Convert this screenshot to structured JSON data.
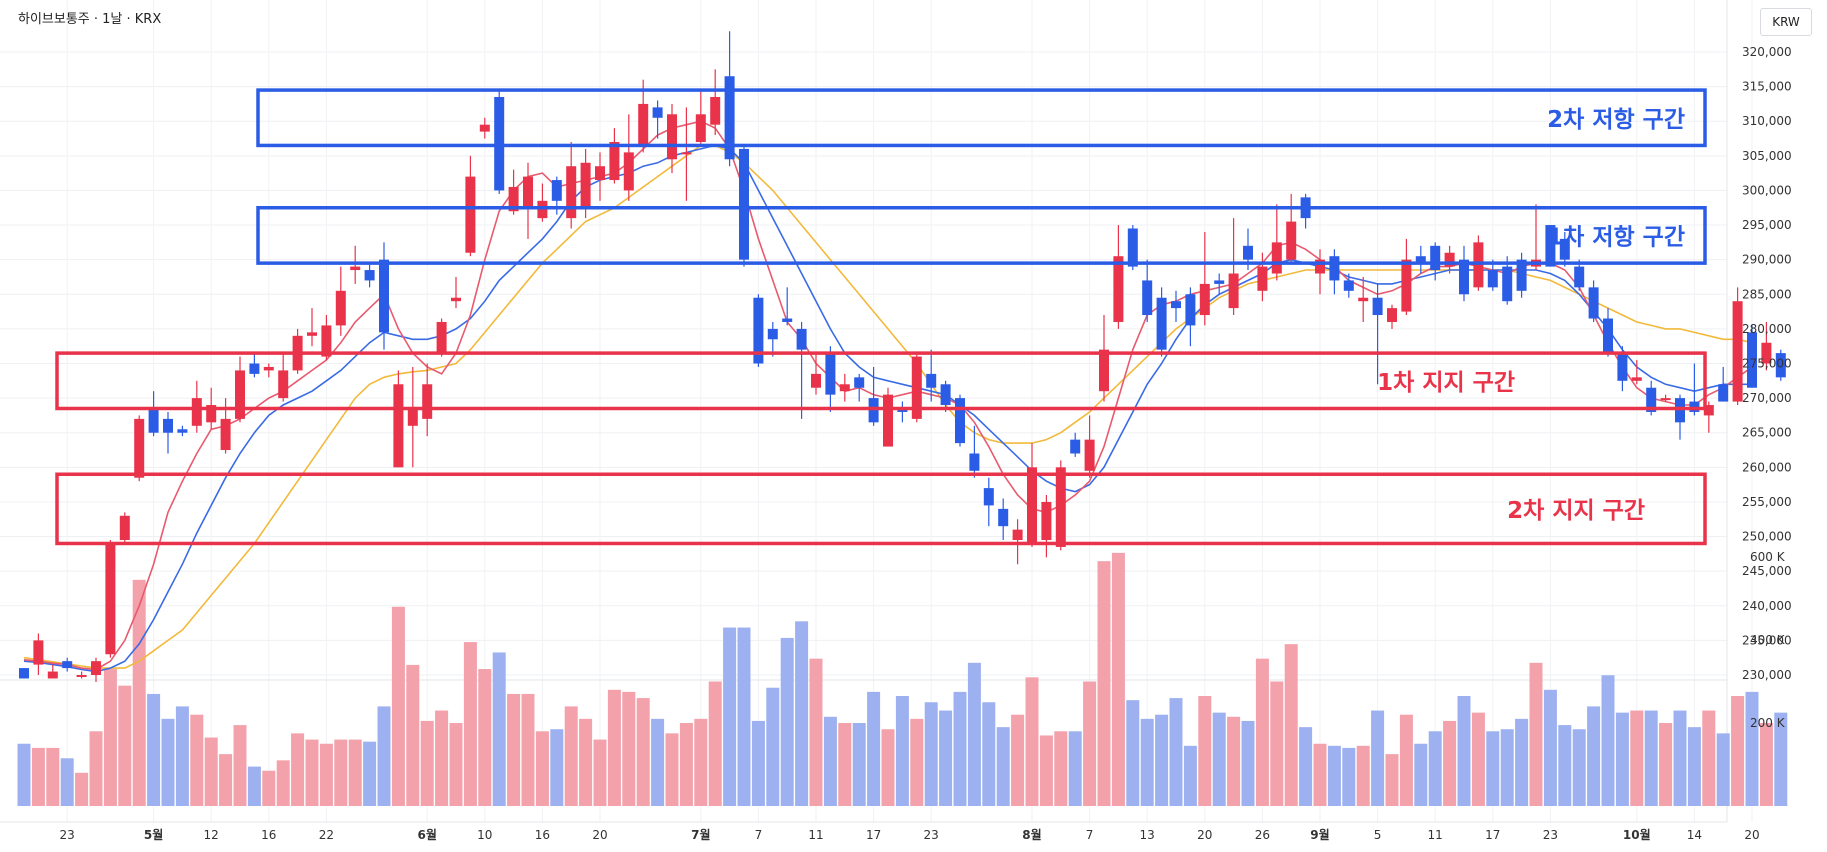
{
  "header": {
    "symbol": "하이브보통주 · 1날 · KRX",
    "currency": "KRW"
  },
  "colors": {
    "up": "#e8334a",
    "down": "#2b5ce6",
    "ma5": "#e85a6e",
    "ma10": "#3a6be6",
    "ma20": "#f2b93a",
    "vol_up": "#f3a1ab",
    "vol_down": "#9db0f0",
    "resist": "#2b5ce6",
    "support": "#e8334a"
  },
  "zones": [
    {
      "label": "2차 저항 구간",
      "type": "resistance",
      "low": 306500,
      "high": 314500
    },
    {
      "label": "1차 저항 구간",
      "type": "resistance",
      "low": 289500,
      "high": 297500
    },
    {
      "label": "1차 지지 구간",
      "type": "support",
      "low": 268500,
      "high": 276500
    },
    {
      "label": "2차 지지 구간",
      "type": "support",
      "low": 249000,
      "high": 259000
    }
  ],
  "chart_data": {
    "type": "candlestick",
    "price_axis": {
      "min": 230000,
      "max": 320000,
      "ticks": [
        "230,000",
        "235,000",
        "240,000",
        "245,000",
        "250,000",
        "255,000",
        "260,000",
        "265,000",
        "270,000",
        "275,000",
        "280,000",
        "285,000",
        "290,000",
        "295,000",
        "300,000",
        "305,000",
        "310,000",
        "315,000",
        "320,000"
      ]
    },
    "volume_axis": {
      "ticks": [
        "200 K",
        "400 K",
        "600 K"
      ],
      "tick_values": [
        200000,
        400000,
        600000
      ]
    },
    "x_labels": [
      {
        "i": 3,
        "t": "23"
      },
      {
        "i": 9,
        "t": "5월"
      },
      {
        "i": 13,
        "t": "12"
      },
      {
        "i": 17,
        "t": "16"
      },
      {
        "i": 21,
        "t": "22"
      },
      {
        "i": 28,
        "t": "6월"
      },
      {
        "i": 32,
        "t": "10"
      },
      {
        "i": 36,
        "t": "16"
      },
      {
        "i": 40,
        "t": "20"
      },
      {
        "i": 47,
        "t": "7월"
      },
      {
        "i": 51,
        "t": "7"
      },
      {
        "i": 55,
        "t": "11"
      },
      {
        "i": 59,
        "t": "17"
      },
      {
        "i": 63,
        "t": "23"
      },
      {
        "i": 70,
        "t": "8월"
      },
      {
        "i": 74,
        "t": "7"
      },
      {
        "i": 78,
        "t": "13"
      },
      {
        "i": 82,
        "t": "20"
      },
      {
        "i": 86,
        "t": "26"
      },
      {
        "i": 90,
        "t": "9월"
      },
      {
        "i": 94,
        "t": "5"
      },
      {
        "i": 98,
        "t": "11"
      },
      {
        "i": 102,
        "t": "17"
      },
      {
        "i": 106,
        "t": "23"
      },
      {
        "i": 112,
        "t": "10월"
      },
      {
        "i": 116,
        "t": "14"
      },
      {
        "i": 120,
        "t": "20"
      }
    ],
    "candles": [
      [
        231000,
        229500,
        231000,
        229500,
        150000
      ],
      [
        231500,
        235000,
        236000,
        230000,
        140000
      ],
      [
        229500,
        230500,
        231500,
        229500,
        140000
      ],
      [
        232000,
        231000,
        232500,
        230500,
        115000
      ],
      [
        230000,
        230000,
        230500,
        229500,
        80000
      ],
      [
        230000,
        232000,
        232500,
        229000,
        180000
      ],
      [
        233000,
        249000,
        249500,
        232500,
        330000
      ],
      [
        249500,
        253000,
        253500,
        249000,
        290000
      ],
      [
        258500,
        267000,
        267500,
        258000,
        545000
      ],
      [
        268500,
        265000,
        271000,
        264500,
        270000
      ],
      [
        267000,
        265000,
        268000,
        262000,
        210000
      ],
      [
        265500,
        265000,
        266000,
        264500,
        240000
      ],
      [
        266000,
        270000,
        272500,
        265000,
        220000
      ],
      [
        266500,
        269000,
        271500,
        265500,
        165000
      ],
      [
        262500,
        267000,
        270000,
        262000,
        125000
      ],
      [
        267000,
        274000,
        276000,
        266500,
        195000
      ],
      [
        275000,
        273500,
        276500,
        273000,
        95000
      ],
      [
        274000,
        274500,
        275000,
        273000,
        85000
      ],
      [
        270000,
        274000,
        276500,
        269500,
        110000
      ],
      [
        274000,
        279000,
        280000,
        273500,
        175000
      ],
      [
        279000,
        279500,
        283000,
        277500,
        160000
      ],
      [
        276000,
        280500,
        282000,
        275500,
        150000
      ],
      [
        280500,
        285500,
        289000,
        279000,
        160000
      ],
      [
        288500,
        289000,
        292000,
        286500,
        160000
      ],
      [
        288500,
        287000,
        289500,
        286000,
        155000
      ],
      [
        290000,
        279500,
        292500,
        277000,
        240000
      ],
      [
        260000,
        272000,
        274000,
        260000,
        480000
      ],
      [
        266000,
        268500,
        274500,
        260000,
        340000
      ],
      [
        267000,
        272000,
        275000,
        264500,
        205000
      ],
      [
        276500,
        281000,
        281500,
        276000,
        230000
      ],
      [
        284000,
        284500,
        287500,
        283000,
        200000
      ],
      [
        291000,
        302000,
        305000,
        290500,
        395000
      ],
      [
        308500,
        309500,
        310500,
        307500,
        330000
      ],
      [
        313500,
        300000,
        314500,
        299500,
        370000
      ],
      [
        297000,
        300500,
        303000,
        296500,
        270000
      ],
      [
        297500,
        302000,
        304000,
        293000,
        270000
      ],
      [
        296000,
        298500,
        301000,
        295500,
        180000
      ],
      [
        301500,
        298500,
        302000,
        296500,
        185000
      ],
      [
        296000,
        303500,
        307000,
        294500,
        240000
      ],
      [
        297500,
        304000,
        306000,
        296000,
        210000
      ],
      [
        301500,
        303500,
        305500,
        298500,
        160000
      ],
      [
        301500,
        307000,
        309000,
        301000,
        280000
      ],
      [
        300000,
        305500,
        311000,
        298500,
        275000
      ],
      [
        306500,
        312500,
        316000,
        305500,
        260000
      ],
      [
        312000,
        310500,
        313000,
        307500,
        210000
      ],
      [
        304500,
        311000,
        312500,
        302500,
        175000
      ],
      [
        305500,
        305500,
        312000,
        298500,
        200000
      ],
      [
        307000,
        311000,
        314500,
        306500,
        210000
      ],
      [
        309500,
        313500,
        317500,
        308000,
        300000
      ],
      [
        316500,
        304500,
        323000,
        303500,
        430000
      ],
      [
        306000,
        290000,
        306500,
        289000,
        430000
      ],
      [
        284500,
        275000,
        285000,
        274500,
        205000
      ],
      [
        280000,
        278500,
        281000,
        276000,
        285000
      ],
      [
        281500,
        281000,
        286000,
        280500,
        405000
      ],
      [
        280000,
        277000,
        281000,
        267000,
        445000
      ],
      [
        271500,
        273500,
        276500,
        270500,
        355000
      ],
      [
        276500,
        270500,
        277500,
        268000,
        215000
      ],
      [
        271000,
        272000,
        273500,
        269500,
        200000
      ],
      [
        273000,
        271500,
        273500,
        269500,
        200000
      ],
      [
        270000,
        266500,
        274500,
        266000,
        275000
      ],
      [
        263000,
        270500,
        271500,
        263000,
        185000
      ],
      [
        268500,
        268000,
        269500,
        266500,
        265000
      ],
      [
        267000,
        276000,
        276500,
        266500,
        210000
      ],
      [
        273500,
        271500,
        277000,
        269500,
        250000
      ],
      [
        272000,
        269000,
        272500,
        268000,
        230000
      ],
      [
        270000,
        263500,
        270500,
        263000,
        275000
      ],
      [
        262000,
        259500,
        266000,
        258500,
        345000
      ],
      [
        257000,
        254500,
        258500,
        251500,
        250000
      ],
      [
        254000,
        251500,
        255500,
        249500,
        190000
      ],
      [
        249500,
        251000,
        252500,
        246000,
        220000
      ],
      [
        249000,
        260000,
        263500,
        248500,
        310000
      ],
      [
        249500,
        255000,
        256000,
        247000,
        170000
      ],
      [
        248500,
        260000,
        261000,
        248000,
        180000
      ],
      [
        264000,
        262000,
        265000,
        261500,
        180000
      ],
      [
        259500,
        264000,
        267500,
        258500,
        300000
      ],
      [
        271000,
        277000,
        282000,
        269500,
        590000
      ],
      [
        281000,
        290500,
        295000,
        280000,
        610000
      ],
      [
        294500,
        289000,
        295000,
        288500,
        255000
      ],
      [
        287000,
        282000,
        290000,
        281000,
        210000
      ],
      [
        284500,
        277000,
        286000,
        276000,
        220000
      ],
      [
        284000,
        283000,
        285500,
        281000,
        260000
      ],
      [
        285000,
        280500,
        286000,
        277500,
        145000
      ],
      [
        282000,
        286500,
        294000,
        280500,
        265000
      ],
      [
        287000,
        286500,
        288000,
        285000,
        225000
      ],
      [
        283000,
        288000,
        296000,
        282000,
        215000
      ],
      [
        292000,
        290000,
        294500,
        288500,
        205000
      ],
      [
        285500,
        289000,
        291000,
        284000,
        355000
      ],
      [
        288000,
        292500,
        298000,
        287000,
        300000
      ],
      [
        290000,
        295500,
        299500,
        289500,
        390000
      ],
      [
        299000,
        296000,
        299500,
        294500,
        190000
      ],
      [
        288000,
        290000,
        291500,
        285000,
        150000
      ],
      [
        290500,
        287000,
        291500,
        285000,
        145000
      ],
      [
        287000,
        285500,
        288000,
        284500,
        140000
      ],
      [
        284000,
        284500,
        287500,
        281000,
        145000
      ],
      [
        284500,
        282000,
        286500,
        272000,
        230000
      ],
      [
        281000,
        283000,
        283500,
        280000,
        125000
      ],
      [
        282500,
        290000,
        293000,
        282000,
        220000
      ],
      [
        290500,
        289500,
        292000,
        288000,
        150000
      ],
      [
        292000,
        288500,
        292500,
        287000,
        180000
      ],
      [
        289000,
        291000,
        292000,
        288000,
        205000
      ],
      [
        290000,
        285000,
        292000,
        284000,
        265000
      ],
      [
        286000,
        292500,
        293500,
        285500,
        225000
      ],
      [
        288500,
        286000,
        290000,
        285500,
        180000
      ],
      [
        289000,
        284000,
        290500,
        283500,
        185000
      ],
      [
        290000,
        285500,
        291000,
        284500,
        210000
      ],
      [
        289000,
        290000,
        298000,
        288500,
        345000
      ],
      [
        295000,
        289000,
        295000,
        289000,
        280000
      ],
      [
        293000,
        290000,
        294000,
        289000,
        195000
      ],
      [
        289000,
        286000,
        290000,
        285500,
        185000
      ],
      [
        286000,
        281500,
        287000,
        281000,
        240000
      ],
      [
        281500,
        276500,
        283000,
        276000,
        315000
      ],
      [
        276500,
        272500,
        277500,
        271000,
        225000
      ],
      [
        272500,
        273000,
        275500,
        272000,
        230000
      ],
      [
        271500,
        268000,
        272500,
        267500,
        230000
      ],
      [
        270000,
        270000,
        270500,
        269500,
        200000
      ],
      [
        270000,
        266500,
        270500,
        264000,
        230000
      ],
      [
        269500,
        268000,
        275000,
        267500,
        190000
      ],
      [
        267500,
        269000,
        269500,
        265000,
        230000
      ],
      [
        272000,
        269500,
        274500,
        269500,
        175000
      ],
      [
        269500,
        284000,
        286000,
        269000,
        265000
      ],
      [
        279500,
        271500,
        280500,
        271500,
        275000
      ],
      [
        275000,
        278000,
        281000,
        274000,
        200000
      ],
      [
        276500,
        273000,
        277000,
        272500,
        225000
      ]
    ],
    "ma5": [
      232200,
      232000,
      231700,
      231500,
      231000,
      230800,
      232000,
      235000,
      240000,
      246000,
      253500,
      258000,
      262000,
      265500,
      266000,
      267000,
      268500,
      270000,
      271000,
      272500,
      274000,
      275500,
      278000,
      281000,
      283000,
      285000,
      280000,
      276500,
      274500,
      273500,
      276500,
      282000,
      290000,
      297000,
      300000,
      302000,
      302500,
      300500,
      301000,
      301500,
      302000,
      302500,
      304000,
      306000,
      308000,
      309000,
      309500,
      310000,
      309000,
      306000,
      300000,
      293000,
      287000,
      281000,
      278500,
      275000,
      273000,
      271000,
      271500,
      270500,
      270000,
      270500,
      271000,
      270500,
      270000,
      269000,
      266500,
      263000,
      259000,
      256000,
      254000,
      253500,
      254500,
      256000,
      258000,
      263000,
      270000,
      277000,
      282000,
      283500,
      284000,
      285000,
      285500,
      286000,
      286500,
      288000,
      289500,
      292000,
      292500,
      291500,
      290000,
      289000,
      287000,
      286000,
      285000,
      285500,
      286500,
      288000,
      289000,
      289000,
      289500,
      289000,
      288500,
      288000,
      289000,
      289500,
      289500,
      288500,
      286000,
      282000,
      278000,
      274500,
      271500,
      270000,
      269500,
      269000,
      269000,
      270500,
      271500,
      273000,
      274500
    ],
    "ma10": [
      232000,
      231800,
      231500,
      231200,
      230800,
      230500,
      231000,
      232000,
      234500,
      238000,
      242000,
      246000,
      250500,
      254500,
      258500,
      262000,
      265000,
      267500,
      269000,
      270000,
      271000,
      272500,
      274000,
      276000,
      278000,
      279500,
      279000,
      278500,
      278500,
      279000,
      280000,
      281500,
      284000,
      287000,
      289000,
      291000,
      293000,
      295500,
      298500,
      300500,
      301500,
      302000,
      302500,
      303500,
      304000,
      305000,
      305500,
      306000,
      306500,
      306000,
      304000,
      300000,
      296000,
      292000,
      288000,
      284000,
      280000,
      276500,
      274500,
      273000,
      272500,
      272000,
      271500,
      271000,
      270500,
      269000,
      267500,
      265500,
      263500,
      261500,
      259500,
      258000,
      257000,
      256500,
      257500,
      260000,
      264000,
      268000,
      272000,
      275000,
      278500,
      281500,
      283500,
      285000,
      286000,
      287000,
      288000,
      289500,
      290000,
      289500,
      289000,
      288500,
      287500,
      287000,
      286500,
      286500,
      287000,
      287500,
      288000,
      288500,
      288500,
      288500,
      288500,
      288500,
      288500,
      288500,
      288000,
      287000,
      285000,
      282500,
      280000,
      277000,
      274500,
      273000,
      272000,
      271500,
      271000,
      271500,
      272000,
      272000,
      272000
    ],
    "ma20": [
      232500,
      232200,
      231900,
      231600,
      231300,
      231000,
      231000,
      231000,
      232000,
      233500,
      235000,
      236500,
      239000,
      241500,
      244000,
      246500,
      249000,
      252000,
      255000,
      258000,
      261000,
      264000,
      267000,
      270000,
      272000,
      273000,
      273500,
      273800,
      274000,
      274500,
      275000,
      277000,
      279500,
      282000,
      284500,
      287000,
      289500,
      291500,
      293500,
      295500,
      296500,
      297500,
      299000,
      300500,
      302000,
      303500,
      305000,
      306500,
      306500,
      305500,
      304000,
      302000,
      300000,
      297500,
      295000,
      292500,
      290000,
      287500,
      285000,
      282500,
      280000,
      277500,
      275000,
      272000,
      269000,
      266500,
      265000,
      264000,
      263500,
      263500,
      263500,
      264000,
      265000,
      266500,
      268000,
      270000,
      272000,
      274000,
      276000,
      278000,
      280000,
      281500,
      283000,
      284500,
      285500,
      286500,
      287000,
      287500,
      288000,
      288500,
      288500,
      288500,
      288500,
      288500,
      288500,
      288500,
      288500,
      288500,
      288500,
      288500,
      288500,
      288500,
      288500,
      288500,
      288000,
      287500,
      287000,
      286000,
      285000,
      284000,
      283000,
      282000,
      281000,
      280500,
      280000,
      280000,
      279500,
      279000,
      278500,
      278500,
      278000
    ]
  }
}
